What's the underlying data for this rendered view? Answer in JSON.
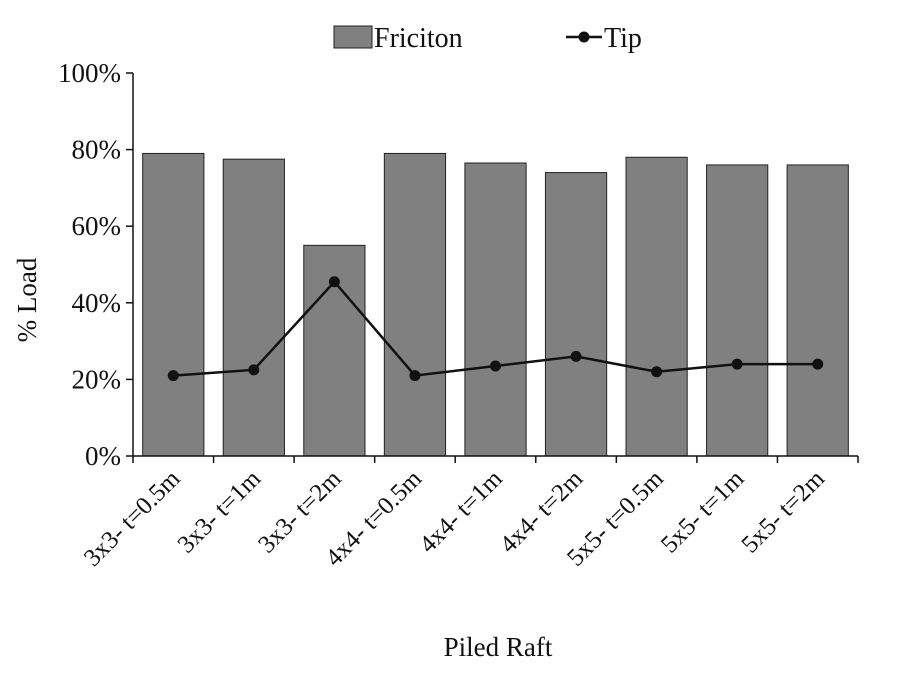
{
  "chart_data": {
    "type": "bar",
    "title": "",
    "xlabel": "Piled Raft",
    "ylabel": "% Load",
    "ylim": [
      0,
      1
    ],
    "yticks": [
      0,
      0.2,
      0.4,
      0.6,
      0.8,
      1.0
    ],
    "ytick_labels": [
      "0%",
      "20%",
      "40%",
      "60%",
      "80%",
      "100%"
    ],
    "grid": false,
    "legend_position": "top",
    "categories": [
      "3x3- t=0.5m",
      "3x3- t=1m",
      "3x3- t=2m",
      "4x4- t=0.5m",
      "4x4- t=1m",
      "4x4- t=2m",
      "5x5- t=0.5m",
      "5x5- t=1m",
      "5x5- t=2m"
    ],
    "series": [
      {
        "name": "Friciton",
        "kind": "bar",
        "color": "#808080",
        "values": [
          0.79,
          0.775,
          0.55,
          0.79,
          0.765,
          0.74,
          0.78,
          0.76,
          0.76
        ]
      },
      {
        "name": "Tip",
        "kind": "line",
        "color": "#111111",
        "values": [
          0.21,
          0.225,
          0.455,
          0.21,
          0.235,
          0.26,
          0.22,
          0.24,
          0.24
        ]
      }
    ]
  }
}
